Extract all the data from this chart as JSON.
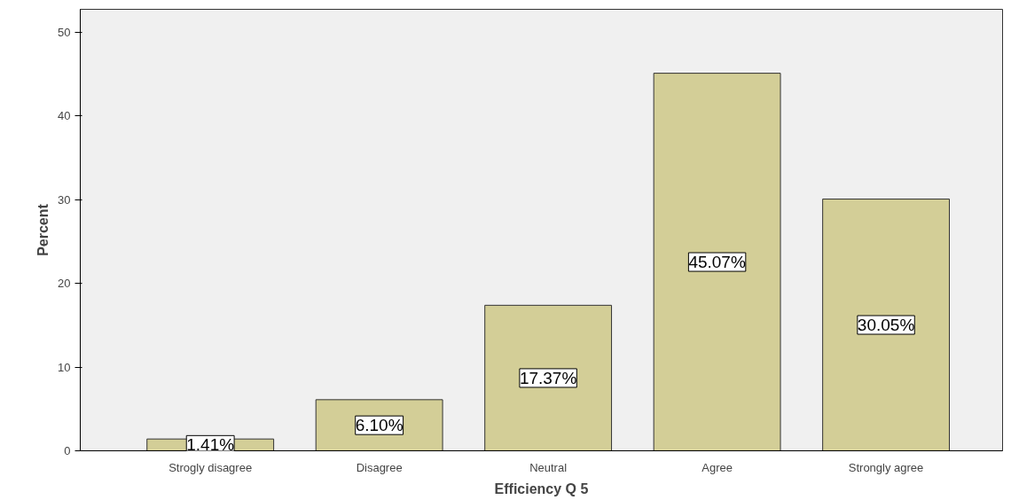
{
  "chart_data": {
    "type": "bar",
    "xlabel": "Efficiency Q 5",
    "ylabel": "Percent",
    "categories": [
      "Strogly disagree",
      "Disagree",
      "Neutral",
      "Agree",
      "Strongly agree"
    ],
    "values": [
      1.41,
      6.1,
      17.37,
      45.07,
      30.05
    ],
    "value_labels": [
      "1.41%",
      "6.10%",
      "17.37%",
      "45.07%",
      "30.05%"
    ],
    "color": "#d3ce97",
    "ylim": [
      0,
      52.7
    ],
    "yticks": [
      0,
      10,
      20,
      30,
      40,
      50
    ],
    "grid": false
  }
}
